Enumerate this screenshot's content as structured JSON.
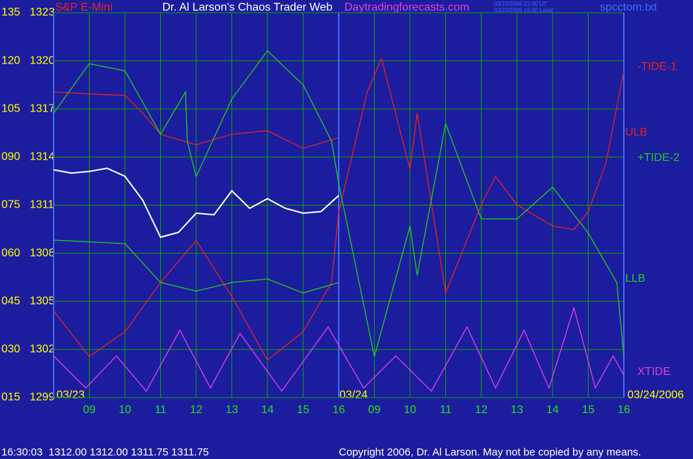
{
  "chart_data": {
    "type": "line",
    "instrument": "S&P E-Mini",
    "title": "Dr. Al Larson's Chaos Trader Web",
    "website": "Daytradingforecasts.com",
    "timestamps": [
      "03/23/2006 21:30 UT",
      "03/23/2006 16:30 Local"
    ],
    "file": "spcctom.txt",
    "date_labels": [
      "03/23",
      "03/24",
      "03/24/2006"
    ],
    "xlim": [
      0,
      16
    ],
    "xticks": [
      {
        "value": 1,
        "label": "09"
      },
      {
        "value": 2,
        "label": "10"
      },
      {
        "value": 3,
        "label": "11"
      },
      {
        "value": 4,
        "label": "12"
      },
      {
        "value": 5,
        "label": "13"
      },
      {
        "value": 6,
        "label": "14"
      },
      {
        "value": 7,
        "label": "15"
      },
      {
        "value": 8,
        "label": "16"
      },
      {
        "value": 9,
        "label": "09"
      },
      {
        "value": 10,
        "label": "10"
      },
      {
        "value": 11,
        "label": "11"
      },
      {
        "value": 12,
        "label": "12"
      },
      {
        "value": 13,
        "label": "13"
      },
      {
        "value": 14,
        "label": "14"
      },
      {
        "value": 15,
        "label": "15"
      },
      {
        "value": 16,
        "label": "16"
      }
    ],
    "ylim": [
      15,
      135
    ],
    "yticks": [
      135,
      120,
      105,
      {
        "value": 90,
        "label": "090"
      },
      {
        "value": 75,
        "label": "075"
      },
      {
        "value": 60,
        "label": "060"
      },
      {
        "value": 45,
        "label": "045"
      },
      {
        "value": 30,
        "label": "030"
      },
      {
        "value": 15,
        "label": "015"
      }
    ],
    "y2lim": [
      1299,
      1323
    ],
    "y2ticks": [
      1323,
      1320,
      1317,
      1314,
      1311,
      1308,
      1305,
      1302,
      1299
    ],
    "grid": true,
    "series": [
      {
        "name": "-TIDE-1",
        "color": "#e02424",
        "x": [
          0,
          1,
          2,
          3,
          4,
          5,
          6,
          7,
          7.8,
          8,
          8.8,
          9.2,
          10,
          10.2,
          11,
          12,
          12.4,
          13,
          14,
          14.6,
          15,
          15.5,
          16
        ],
        "values": [
          42,
          27.8,
          35.5,
          50.9,
          64,
          46.5,
          26.7,
          35.5,
          50.9,
          72.9,
          110.3,
          120.7,
          86.1,
          103.7,
          47.6,
          75.1,
          83.9,
          75.1,
          68.5,
          67.4,
          72.9,
          88.3,
          116.9
        ]
      },
      {
        "name": "ULB",
        "color": "#e02424",
        "x": [
          0,
          1,
          2,
          2.5,
          3,
          4,
          5,
          6,
          7,
          8
        ],
        "values": [
          110.3,
          109.7,
          109.2,
          103.7,
          97.1,
          93.8,
          97.1,
          98.2,
          92.7,
          96
        ]
      },
      {
        "name": "+TIDE-2",
        "color": "#22c822",
        "x": [
          0,
          1,
          2,
          3,
          3.7,
          3.75,
          4,
          5,
          6,
          7,
          7.8,
          8,
          9,
          10,
          10.2,
          11,
          12,
          13,
          14,
          15,
          15.8,
          16
        ],
        "values": [
          103.7,
          119.1,
          116.9,
          97.1,
          110.3,
          94.9,
          83.9,
          108.1,
          123.1,
          112.5,
          94.9,
          81.7,
          27.8,
          68.5,
          53.1,
          100.4,
          70.7,
          70.7,
          80.6,
          66.3,
          50.9,
          28
        ]
      },
      {
        "name": "LLB",
        "color": "#22c822",
        "x": [
          0,
          2,
          3,
          4,
          5,
          6,
          7,
          8
        ],
        "values": [
          64.1,
          63,
          50.9,
          48.2,
          50.9,
          52,
          47.6,
          50.9
        ]
      },
      {
        "name": "XTIDE",
        "color": "#e040e0",
        "x": [
          0,
          0.9,
          1.76,
          2.6,
          3.54,
          4.4,
          5.23,
          6.4,
          7.7,
          8.7,
          9.6,
          10.6,
          11.6,
          12.4,
          13.2,
          13.9,
          14.6,
          15.2,
          15.7,
          16
        ],
        "values": [
          28,
          18,
          28,
          17,
          36,
          18,
          35,
          17,
          37,
          18,
          28,
          17,
          37,
          18,
          36,
          18,
          43,
          18,
          28,
          22
        ]
      },
      {
        "color": "#ffffff",
        "axis": "y2",
        "x": [
          0,
          0.5,
          1,
          1.5,
          2,
          2.5,
          3,
          3.5,
          4,
          4.5,
          5,
          5.5,
          6,
          6.5,
          7,
          7.5,
          8
        ],
        "values": [
          1313.2,
          1313,
          1313.1,
          1313.3,
          1312.8,
          1311.3,
          1309,
          1309.3,
          1310.5,
          1310.4,
          1311.9,
          1310.8,
          1311.4,
          1310.8,
          1310.5,
          1310.6,
          1311.6
        ]
      }
    ],
    "footer": {
      "quote": "16:30:03  1312.00 1312.00 1311.75 1311.75",
      "copyright": "Copyright 2006, Dr. Al Larson. May not be copied by any means."
    }
  }
}
